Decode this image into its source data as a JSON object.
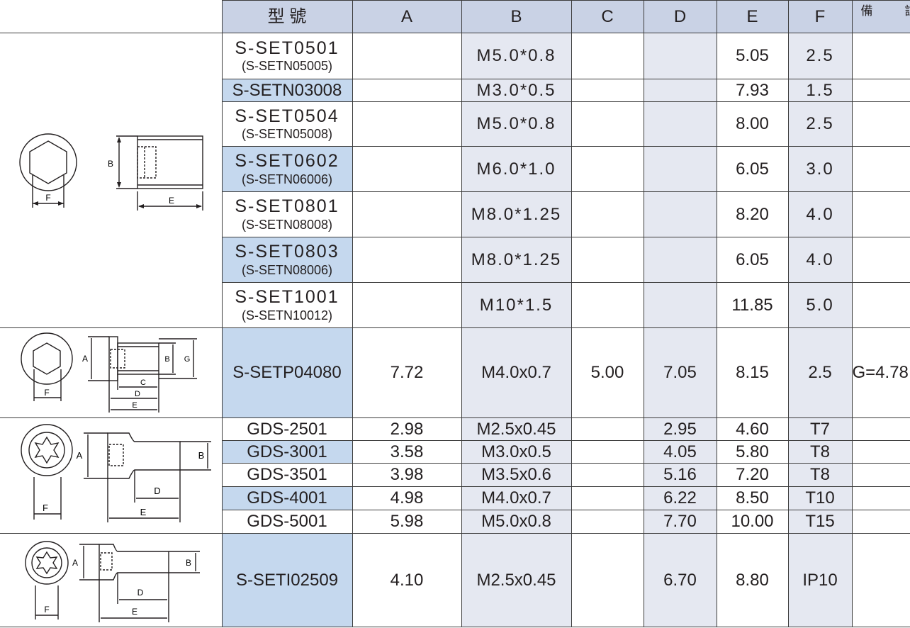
{
  "header": {
    "model": "型 號",
    "a": "A",
    "b": "B",
    "c": "C",
    "d": "D",
    "e": "E",
    "f": "F",
    "note": "備 註"
  },
  "figure_labels": {
    "a": "A",
    "b": "B",
    "d": "D",
    "e": "E",
    "f": "F",
    "c": "C",
    "g": "G"
  },
  "group1": [
    {
      "model": "S-SET0501",
      "alt": "(S-SETN05005)",
      "a": "",
      "b": "M5.0*0.8",
      "c": "",
      "d": "",
      "e": "5.05",
      "f": "2.5",
      "note": ""
    },
    {
      "model": "S-SETN03008",
      "alt": "",
      "a": "",
      "b": "M3.0*0.5",
      "c": "",
      "d": "",
      "e": "7.93",
      "f": "1.5",
      "note": ""
    },
    {
      "model": "S-SET0504",
      "alt": "(S-SETN05008)",
      "a": "",
      "b": "M5.0*0.8",
      "c": "",
      "d": "",
      "e": "8.00",
      "f": "2.5",
      "note": ""
    },
    {
      "model": "S-SET0602",
      "alt": "(S-SETN06006)",
      "a": "",
      "b": "M6.0*1.0",
      "c": "",
      "d": "",
      "e": "6.05",
      "f": "3.0",
      "note": ""
    },
    {
      "model": "S-SET0801",
      "alt": "(S-SETN08008)",
      "a": "",
      "b": "M8.0*1.25",
      "c": "",
      "d": "",
      "e": "8.20",
      "f": "4.0",
      "note": ""
    },
    {
      "model": "S-SET0803",
      "alt": "(S-SETN08006)",
      "a": "",
      "b": "M8.0*1.25",
      "c": "",
      "d": "",
      "e": "6.05",
      "f": "4.0",
      "note": ""
    },
    {
      "model": "S-SET1001",
      "alt": "(S-SETN10012)",
      "a": "",
      "b": "M10*1.5",
      "c": "",
      "d": "",
      "e": "11.85",
      "f": "5.0",
      "note": ""
    }
  ],
  "group2": {
    "model": "S-SETP04080",
    "a": "7.72",
    "b": "M4.0x0.7",
    "c": "5.00",
    "d": "7.05",
    "e": "8.15",
    "f": "2.5",
    "note": "G=4.78"
  },
  "group3": [
    {
      "model": "GDS-2501",
      "a": "2.98",
      "b": "M2.5x0.45",
      "c": "",
      "d": "2.95",
      "e": "4.60",
      "f": "T7",
      "note": ""
    },
    {
      "model": "GDS-3001",
      "a": "3.58",
      "b": "M3.0x0.5",
      "c": "",
      "d": "4.05",
      "e": "5.80",
      "f": "T8",
      "note": ""
    },
    {
      "model": "GDS-3501",
      "a": "3.98",
      "b": "M3.5x0.6",
      "c": "",
      "d": "5.16",
      "e": "7.20",
      "f": "T8",
      "note": ""
    },
    {
      "model": "GDS-4001",
      "a": "4.98",
      "b": "M4.0x0.7",
      "c": "",
      "d": "6.22",
      "e": "8.50",
      "f": "T10",
      "note": ""
    },
    {
      "model": "GDS-5001",
      "a": "5.98",
      "b": "M5.0x0.8",
      "c": "",
      "d": "7.70",
      "e": "10.00",
      "f": "T15",
      "note": ""
    }
  ],
  "group4": {
    "model": "S-SETI02509",
    "a": "4.10",
    "b": "M2.5x0.45",
    "c": "",
    "d": "6.70",
    "e": "8.80",
    "f": "IP10",
    "note": ""
  },
  "colors": {
    "header_bg": "#c9d2e5",
    "model_highlight": "#c5d8ee",
    "shaded_column": "#e5e8f1",
    "border": "#3c3c3c"
  }
}
